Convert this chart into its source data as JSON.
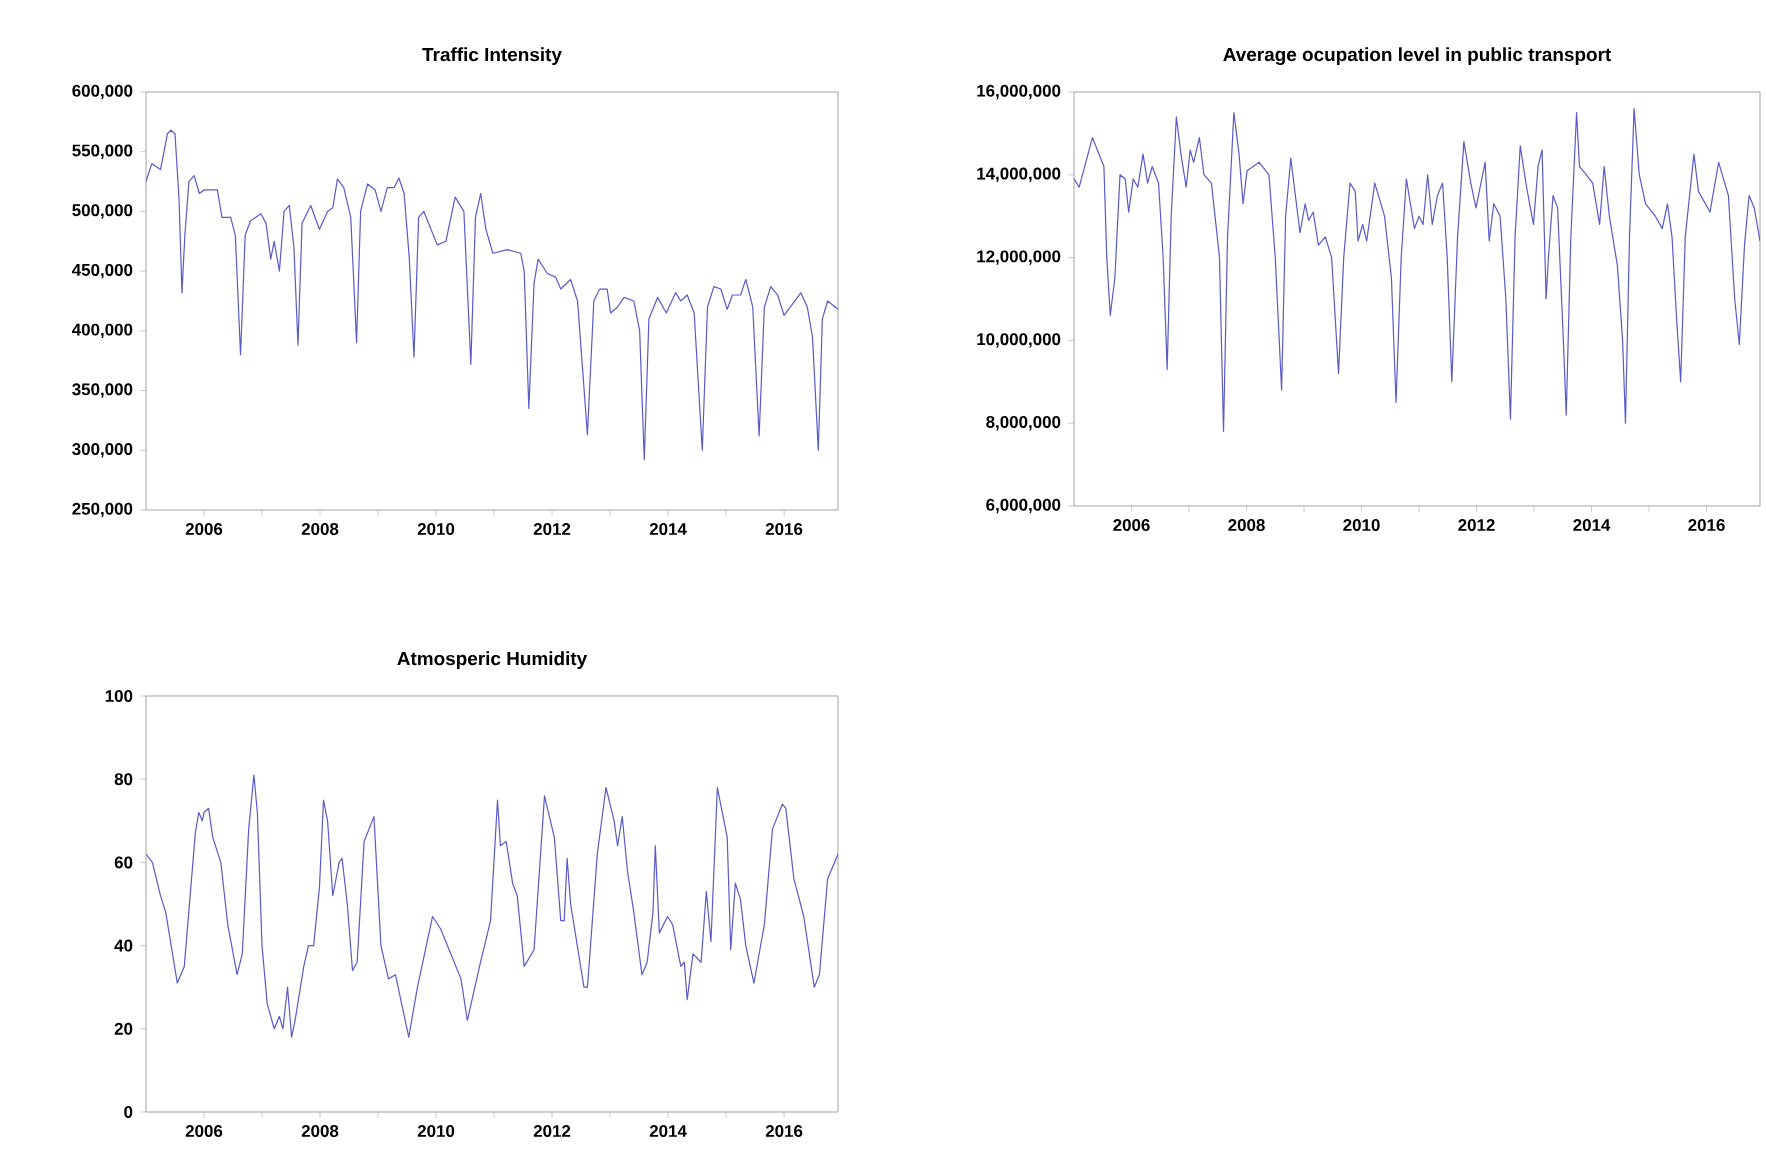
{
  "chart_data": [
    {
      "type": "line",
      "title": "Traffic Intensity",
      "color": "#5a5ac8",
      "x": [
        2005.0,
        2005.1,
        2005.25,
        2005.37,
        2005.43,
        2005.5,
        2005.57,
        2005.62,
        2005.67,
        2005.74,
        2005.83,
        2005.92,
        2006.0,
        2006.23,
        2006.31,
        2006.46,
        2006.54,
        2006.63,
        2006.71,
        2006.8,
        2006.98,
        2007.07,
        2007.15,
        2007.21,
        2007.3,
        2007.38,
        2007.47,
        2007.55,
        2007.62,
        2007.69,
        2007.84,
        2007.99,
        2008.13,
        2008.22,
        2008.3,
        2008.41,
        2008.53,
        2008.63,
        2008.7,
        2008.82,
        2008.95,
        2009.05,
        2009.16,
        2009.28,
        2009.36,
        2009.45,
        2009.54,
        2009.62,
        2009.7,
        2009.79,
        2010.02,
        2010.17,
        2010.33,
        2010.48,
        2010.6,
        2010.68,
        2010.77,
        2010.86,
        2010.98,
        2011.23,
        2011.46,
        2011.52,
        2011.6,
        2011.69,
        2011.76,
        2011.92,
        2012.06,
        2012.15,
        2012.32,
        2012.44,
        2012.61,
        2012.72,
        2012.82,
        2012.95,
        2013.01,
        2013.13,
        2013.24,
        2013.41,
        2013.51,
        2013.59,
        2013.67,
        2013.82,
        2013.97,
        2014.13,
        2014.22,
        2014.33,
        2014.45,
        2014.59,
        2014.68,
        2014.79,
        2014.91,
        2015.02,
        2015.11,
        2015.25,
        2015.34,
        2015.46,
        2015.57,
        2015.66,
        2015.77,
        2015.89,
        2016.0,
        2016.11,
        2016.29,
        2016.4,
        2016.49,
        2016.59,
        2016.66,
        2016.75,
        2016.93
      ],
      "values": [
        525000,
        540000,
        535000,
        565000,
        568000,
        565000,
        510000,
        432000,
        480000,
        525000,
        530000,
        515000,
        518000,
        518000,
        495000,
        495000,
        480000,
        380000,
        480000,
        492000,
        498000,
        490000,
        460000,
        475000,
        450000,
        500000,
        505000,
        470000,
        388000,
        490000,
        505000,
        485000,
        500000,
        503000,
        527000,
        520000,
        495000,
        390000,
        500000,
        523000,
        518000,
        500000,
        520000,
        520000,
        528000,
        515000,
        460000,
        378000,
        495000,
        500000,
        472000,
        475000,
        512000,
        500000,
        372000,
        495000,
        515000,
        485000,
        465000,
        468000,
        465000,
        450000,
        335000,
        440000,
        460000,
        448000,
        445000,
        435000,
        443000,
        425000,
        313000,
        425000,
        435000,
        435000,
        415000,
        420000,
        428000,
        425000,
        400000,
        292000,
        410000,
        428000,
        415000,
        432000,
        425000,
        430000,
        415000,
        300000,
        420000,
        437000,
        435000,
        418000,
        430000,
        430000,
        443000,
        420000,
        312000,
        420000,
        437000,
        430000,
        413000,
        420000,
        432000,
        420000,
        395000,
        300000,
        410000,
        425000,
        418000
      ],
      "xlim": [
        2005.0,
        2016.93
      ],
      "xticks": [
        {
          "value": 2006,
          "label": "2006"
        },
        {
          "value": 2007,
          "label": null
        },
        {
          "value": 2008,
          "label": "2008"
        },
        {
          "value": 2009,
          "label": null
        },
        {
          "value": 2010,
          "label": "2010"
        },
        {
          "value": 2011,
          "label": null
        },
        {
          "value": 2012,
          "label": "2012"
        },
        {
          "value": 2013,
          "label": null
        },
        {
          "value": 2014,
          "label": "2014"
        },
        {
          "value": 2015,
          "label": null
        },
        {
          "value": 2016,
          "label": "2016"
        }
      ],
      "ylim": [
        250000,
        600000
      ],
      "yticks": [
        {
          "value": 250000,
          "label": "250,000"
        },
        {
          "value": 300000,
          "label": "300,000"
        },
        {
          "value": 350000,
          "label": "350,000"
        },
        {
          "value": 400000,
          "label": "400,000"
        },
        {
          "value": 450000,
          "label": "450,000"
        },
        {
          "value": 500000,
          "label": "500,000"
        },
        {
          "value": 550000,
          "label": "550,000"
        },
        {
          "value": 600000,
          "label": "600,000"
        }
      ]
    },
    {
      "type": "line",
      "title": "Average ocupation level in public transport",
      "color": "#5a5ac8",
      "x": [
        2005.0,
        2005.09,
        2005.32,
        2005.52,
        2005.57,
        2005.63,
        2005.71,
        2005.8,
        2005.89,
        2005.95,
        2006.03,
        2006.11,
        2006.2,
        2006.28,
        2006.36,
        2006.47,
        2006.55,
        2006.62,
        2006.69,
        2006.78,
        2006.86,
        2006.95,
        2007.02,
        2007.08,
        2007.18,
        2007.26,
        2007.39,
        2007.53,
        2007.6,
        2007.67,
        2007.78,
        2007.87,
        2007.94,
        2008.01,
        2008.22,
        2008.39,
        2008.5,
        2008.61,
        2008.68,
        2008.77,
        2008.85,
        2008.93,
        2009.02,
        2009.08,
        2009.16,
        2009.25,
        2009.37,
        2009.48,
        2009.6,
        2009.69,
        2009.8,
        2009.89,
        2009.94,
        2010.02,
        2010.09,
        2010.23,
        2010.4,
        2010.52,
        2010.6,
        2010.69,
        2010.78,
        2010.92,
        2011.0,
        2011.07,
        2011.15,
        2011.23,
        2011.32,
        2011.41,
        2011.49,
        2011.57,
        2011.67,
        2011.78,
        2011.9,
        2011.99,
        2012.15,
        2012.22,
        2012.3,
        2012.41,
        2012.51,
        2012.59,
        2012.67,
        2012.76,
        2012.87,
        2012.99,
        2013.07,
        2013.14,
        2013.21,
        2013.25,
        2013.33,
        2013.41,
        2013.51,
        2013.56,
        2013.64,
        2013.74,
        2013.79,
        2013.91,
        2014.02,
        2014.14,
        2014.22,
        2014.31,
        2014.45,
        2014.54,
        2014.59,
        2014.66,
        2014.74,
        2014.83,
        2014.94,
        2015.11,
        2015.23,
        2015.32,
        2015.4,
        2015.48,
        2015.55,
        2015.63,
        2015.78,
        2015.86,
        2016.06,
        2016.21,
        2016.38,
        2016.49,
        2016.57,
        2016.66,
        2016.74,
        2016.83,
        2016.93
      ],
      "values": [
        13900000,
        13700000,
        14900000,
        14200000,
        12000000,
        10600000,
        11500000,
        14000000,
        13900000,
        13100000,
        13900000,
        13700000,
        14500000,
        13800000,
        14200000,
        13800000,
        12000000,
        9300000,
        13000000,
        15400000,
        14500000,
        13700000,
        14600000,
        14300000,
        14900000,
        14000000,
        13800000,
        12000000,
        7800000,
        12500000,
        15500000,
        14500000,
        13300000,
        14100000,
        14300000,
        14000000,
        12000000,
        8800000,
        13000000,
        14400000,
        13500000,
        12600000,
        13300000,
        12900000,
        13100000,
        12300000,
        12500000,
        12000000,
        9200000,
        12000000,
        13800000,
        13600000,
        12400000,
        12800000,
        12400000,
        13800000,
        13000000,
        11500000,
        8500000,
        12000000,
        13900000,
        12700000,
        13000000,
        12800000,
        14000000,
        12800000,
        13500000,
        13800000,
        12000000,
        9000000,
        12500000,
        14800000,
        13800000,
        13200000,
        14300000,
        12400000,
        13300000,
        13000000,
        11000000,
        8100000,
        12500000,
        14700000,
        13700000,
        12800000,
        14200000,
        14600000,
        11000000,
        12000000,
        13500000,
        13200000,
        10000000,
        8200000,
        12500000,
        15500000,
        14200000,
        14000000,
        13800000,
        12800000,
        14200000,
        13000000,
        11800000,
        10000000,
        8000000,
        12500000,
        15600000,
        14000000,
        13300000,
        13000000,
        12700000,
        13300000,
        12500000,
        10500000,
        9000000,
        12500000,
        14500000,
        13600000,
        13100000,
        14300000,
        13500000,
        11000000,
        9900000,
        12300000,
        13500000,
        13200000,
        12400000
      ],
      "xlim": [
        2005.0,
        2016.93
      ],
      "xticks": [
        {
          "value": 2006,
          "label": "2006"
        },
        {
          "value": 2007,
          "label": null
        },
        {
          "value": 2008,
          "label": "2008"
        },
        {
          "value": 2009,
          "label": null
        },
        {
          "value": 2010,
          "label": "2010"
        },
        {
          "value": 2011,
          "label": null
        },
        {
          "value": 2012,
          "label": "2012"
        },
        {
          "value": 2013,
          "label": null
        },
        {
          "value": 2014,
          "label": "2014"
        },
        {
          "value": 2015,
          "label": null
        },
        {
          "value": 2016,
          "label": "2016"
        }
      ],
      "ylim": [
        6000000,
        16000000
      ],
      "yticks": [
        {
          "value": 6000000,
          "label": "6,000,000"
        },
        {
          "value": 8000000,
          "label": "8,000,000"
        },
        {
          "value": 10000000,
          "label": "10,000,000"
        },
        {
          "value": 12000000,
          "label": "12,000,000"
        },
        {
          "value": 14000000,
          "label": "14,000,000"
        },
        {
          "value": 16000000,
          "label": "16,000,000"
        }
      ]
    },
    {
      "type": "line",
      "title": "Atmosperic Humidity",
      "color": "#5a5ac8",
      "x": [
        2005.0,
        2005.11,
        2005.25,
        2005.34,
        2005.54,
        2005.66,
        2005.85,
        2005.91,
        2005.97,
        2006.0,
        2006.08,
        2006.15,
        2006.29,
        2006.41,
        2006.57,
        2006.66,
        2006.77,
        2006.86,
        2006.92,
        2007.0,
        2007.09,
        2007.21,
        2007.3,
        2007.36,
        2007.44,
        2007.51,
        2007.57,
        2007.72,
        2007.8,
        2007.89,
        2007.99,
        2008.06,
        2008.13,
        2008.22,
        2008.33,
        2008.38,
        2008.47,
        2008.56,
        2008.64,
        2008.76,
        2008.93,
        2009.05,
        2009.18,
        2009.3,
        2009.53,
        2009.68,
        2009.94,
        2010.08,
        2010.43,
        2010.54,
        2010.75,
        2010.94,
        2011.06,
        2011.11,
        2011.21,
        2011.32,
        2011.4,
        2011.52,
        2011.69,
        2011.87,
        2012.04,
        2012.15,
        2012.21,
        2012.26,
        2012.32,
        2012.55,
        2012.61,
        2012.78,
        2012.93,
        2013.07,
        2013.13,
        2013.21,
        2013.3,
        2013.41,
        2013.55,
        2013.64,
        2013.74,
        2013.78,
        2013.85,
        2013.99,
        2014.08,
        2014.22,
        2014.28,
        2014.33,
        2014.43,
        2014.57,
        2014.66,
        2014.74,
        2014.85,
        2015.02,
        2015.08,
        2015.16,
        2015.25,
        2015.34,
        2015.48,
        2015.66,
        2015.8,
        2015.97,
        2016.03,
        2016.17,
        2016.34,
        2016.52,
        2016.61,
        2016.75,
        2016.93
      ],
      "values": [
        62,
        60,
        52,
        48,
        31,
        35,
        67,
        72,
        70,
        72,
        73,
        66,
        60,
        45,
        33,
        38,
        68,
        81,
        72,
        40,
        26,
        20,
        23,
        20,
        30,
        18,
        22,
        35,
        40,
        40,
        54,
        75,
        70,
        52,
        60,
        61,
        50,
        34,
        36,
        65,
        71,
        40,
        32,
        33,
        18,
        30,
        47,
        44,
        32,
        22,
        35,
        46,
        75,
        64,
        65,
        55,
        52,
        35,
        39,
        76,
        66,
        46,
        46,
        61,
        50,
        30,
        30,
        62,
        78,
        70,
        64,
        71,
        58,
        48,
        33,
        36,
        48,
        64,
        43,
        47,
        45,
        35,
        36,
        27,
        38,
        36,
        53,
        41,
        78,
        66,
        39,
        55,
        51,
        40,
        31,
        45,
        68,
        74,
        73,
        56,
        47,
        30,
        33,
        56,
        62
      ],
      "xlim": [
        2005.0,
        2016.93
      ],
      "xticks": [
        {
          "value": 2006,
          "label": "2006"
        },
        {
          "value": 2007,
          "label": null
        },
        {
          "value": 2008,
          "label": "2008"
        },
        {
          "value": 2009,
          "label": null
        },
        {
          "value": 2010,
          "label": "2010"
        },
        {
          "value": 2011,
          "label": null
        },
        {
          "value": 2012,
          "label": "2012"
        },
        {
          "value": 2013,
          "label": null
        },
        {
          "value": 2014,
          "label": "2014"
        },
        {
          "value": 2015,
          "label": null
        },
        {
          "value": 2016,
          "label": "2016"
        }
      ],
      "ylim": [
        0,
        100
      ],
      "yticks": [
        0,
        20,
        40,
        60,
        80,
        100
      ]
    }
  ]
}
